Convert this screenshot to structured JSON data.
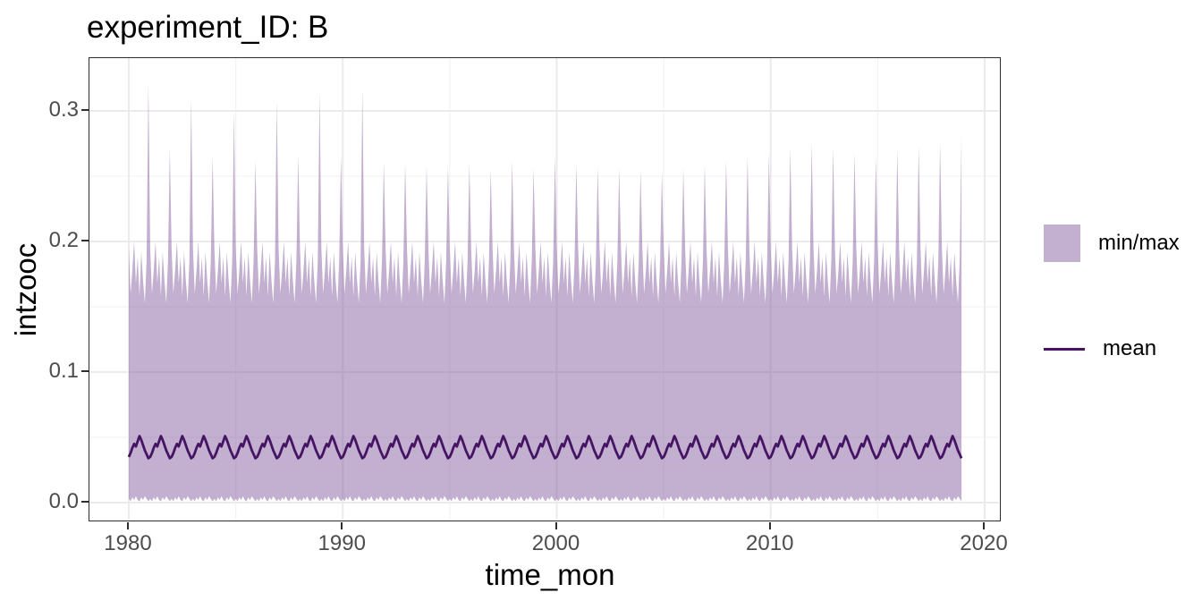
{
  "title": "experiment_ID: B",
  "axes": {
    "x": {
      "label": "time_mon",
      "tick_labels": [
        "1980",
        "1990",
        "2000",
        "2010",
        "2020"
      ],
      "tick_values": [
        1980,
        1990,
        2000,
        2010,
        2020
      ],
      "minor_values": [
        1985,
        1995,
        2005,
        2015
      ]
    },
    "y": {
      "label": "intzooc",
      "tick_labels": [
        "0.0",
        "0.1",
        "0.2",
        "0.3"
      ],
      "tick_values": [
        0.0,
        0.1,
        0.2,
        0.3
      ],
      "minor_values": [
        0.05,
        0.15,
        0.25
      ]
    }
  },
  "legend": {
    "items": [
      {
        "label": "min/max",
        "key": "fill-swatch",
        "color": "rgba(127,86,153,0.47)"
      },
      {
        "label": "mean",
        "key": "line",
        "color": "#451463"
      }
    ]
  },
  "colors": {
    "ribbon_fill": "rgba(127,86,153,0.47)",
    "mean_line": "#451463",
    "grid_major": "#ebebeb",
    "grid_minor": "#f3f3f3",
    "panel_border": "#2e2e2e",
    "tick_text": "#4d4d4d",
    "title_text": "#000000"
  },
  "chart_data": {
    "type": "area",
    "title": "experiment_ID: B",
    "xlabel": "time_mon",
    "ylabel": "intzooc",
    "xlim": [
      1978.1,
      2020.85
    ],
    "ylim": [
      -0.015,
      0.34
    ],
    "x_unit": "decimal year, monthly samples",
    "x_start_year": 1980,
    "x_end": 2018.917,
    "months_per_year": 12,
    "series": [
      {
        "name": "min/max",
        "type": "ribbon",
        "description": "envelope between monthly min (~0) and monthly max; max has sharp December spike each year",
        "max_monthly_pattern": [
          0.195,
          0.16,
          0.178,
          0.2,
          0.168,
          0.188,
          0.158,
          0.192,
          0.17,
          0.153,
          0.185,
          null
        ],
        "dec_annual_peaks_start_year": 1980,
        "dec_annual_peaks": [
          0.322,
          0.271,
          0.31,
          0.265,
          0.3,
          0.262,
          0.308,
          0.266,
          0.315,
          0.266,
          0.317,
          0.261,
          0.26,
          0.258,
          0.258,
          0.26,
          0.255,
          0.262,
          0.256,
          0.264,
          0.259,
          0.257,
          0.256,
          0.254,
          0.253,
          0.256,
          0.259,
          0.262,
          0.265,
          0.268,
          0.272,
          0.275,
          0.272,
          0.268,
          0.265,
          0.27,
          0.273,
          0.275,
          0.281
        ],
        "min_monthly_pattern": [
          0.003,
          0.001,
          0.004,
          0.002,
          0.005,
          0.002,
          0.001,
          0.004,
          0.002,
          0.005,
          0.003,
          0.001
        ]
      },
      {
        "name": "mean",
        "type": "line",
        "description": "annual cycle oscillating between about 0.034 and 0.051",
        "monthly_pattern": [
          0.035,
          0.038,
          0.042,
          0.045,
          0.043,
          0.047,
          0.051,
          0.048,
          0.044,
          0.04,
          0.037,
          0.034
        ]
      }
    ]
  }
}
